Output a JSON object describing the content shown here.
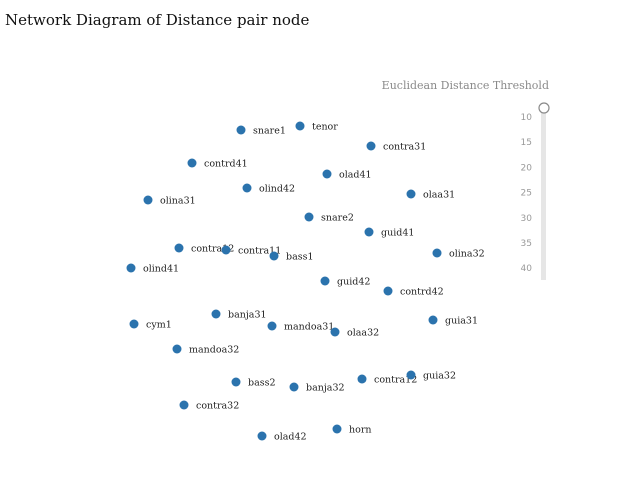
{
  "title": "Network Diagram of Distance pair node",
  "colors": {
    "node": "#2b73ad",
    "track": "#e6e6e6",
    "handle_stroke": "#8a8a8a"
  },
  "slider": {
    "title": "Euclidean Distance Threshold",
    "ticks": [
      "10",
      "15",
      "20",
      "25",
      "30",
      "35",
      "40"
    ],
    "value": 10
  },
  "chart_data": {
    "type": "scatter",
    "nodes": [
      {
        "label": "snare1"
      },
      {
        "label": "tenor"
      },
      {
        "label": "contra31"
      },
      {
        "label": "contrd41"
      },
      {
        "label": "olad41"
      },
      {
        "label": "olind42"
      },
      {
        "label": "olaa31"
      },
      {
        "label": "olina31"
      },
      {
        "label": "snare2"
      },
      {
        "label": "guid41"
      },
      {
        "label": "contra12"
      },
      {
        "label": "contra11"
      },
      {
        "label": "bass1"
      },
      {
        "label": "olina32"
      },
      {
        "label": "olind41"
      },
      {
        "label": "guid42"
      },
      {
        "label": "contrd42"
      },
      {
        "label": "banja31"
      },
      {
        "label": "guia31"
      },
      {
        "label": "cym1"
      },
      {
        "label": "mandoa31"
      },
      {
        "label": "olaa32"
      },
      {
        "label": "mandoa32"
      },
      {
        "label": "contra12"
      },
      {
        "label": "guia32"
      },
      {
        "label": "bass2"
      },
      {
        "label": "banja32"
      },
      {
        "label": "contra32"
      },
      {
        "label": "horn"
      },
      {
        "label": "olad42"
      }
    ]
  }
}
